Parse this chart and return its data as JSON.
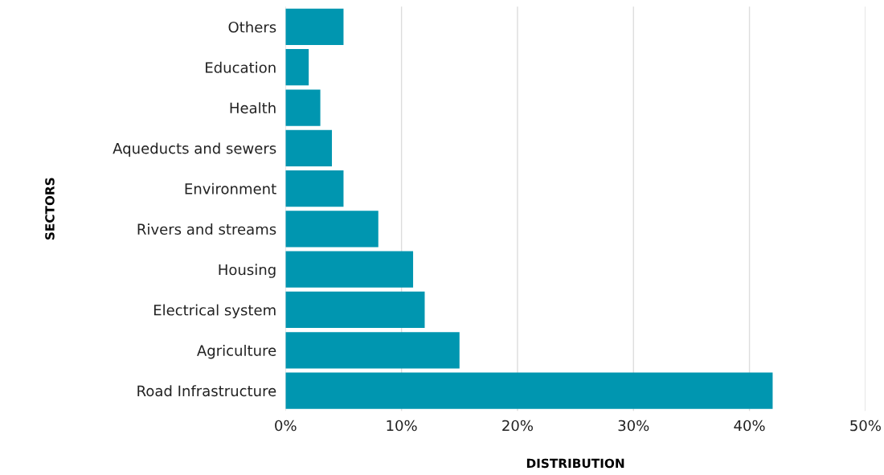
{
  "chart_data": {
    "type": "bar",
    "orientation": "horizontal",
    "xlabel": "DISTRIBUTION",
    "ylabel": "SECTORS",
    "categories": [
      "Others",
      "Education",
      "Health",
      "Aqueducts and sewers",
      "Environment",
      "Rivers and streams",
      "Housing",
      "Electrical system",
      "Agriculture",
      "Road Infrastructure"
    ],
    "values": [
      5,
      2,
      3,
      4,
      5,
      8,
      11,
      12,
      15,
      42
    ],
    "color": "#0096b0",
    "xlim": [
      0,
      50
    ],
    "xticks": [
      {
        "value": 0,
        "label": "0%"
      },
      {
        "value": 10,
        "label": "10%"
      },
      {
        "value": 20,
        "label": "20%"
      },
      {
        "value": 30,
        "label": "30%"
      },
      {
        "value": 40,
        "label": "40%"
      },
      {
        "value": 50,
        "label": "50%"
      }
    ],
    "grid": "x"
  }
}
